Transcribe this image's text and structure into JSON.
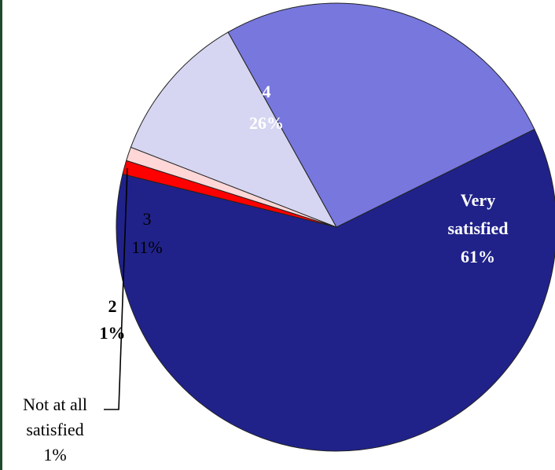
{
  "chart_data": {
    "type": "pie",
    "title": "",
    "slices": [
      {
        "label_lines": [
          "Very",
          "satisfied"
        ],
        "percent_label": "61%",
        "value": 61,
        "color": "#20228a",
        "text_color": "#ffffff",
        "bold": true
      },
      {
        "label_lines": [
          "Not at all",
          "satisfied"
        ],
        "percent_label": "1%",
        "value": 1,
        "color": "#ff0000",
        "text_color": "#000000",
        "bold": false
      },
      {
        "label_lines": [
          "2"
        ],
        "percent_label": "1%",
        "value": 1,
        "color": "#ffd7d7",
        "text_color": "#000000",
        "bold": true
      },
      {
        "label_lines": [
          "3"
        ],
        "percent_label": "11%",
        "value": 11,
        "color": "#d6d6f2",
        "text_color": "#000000",
        "bold": false
      },
      {
        "label_lines": [
          "4"
        ],
        "percent_label": "26%",
        "value": 26,
        "color": "#7777de",
        "text_color": "#ffffff",
        "bold": true
      }
    ]
  }
}
